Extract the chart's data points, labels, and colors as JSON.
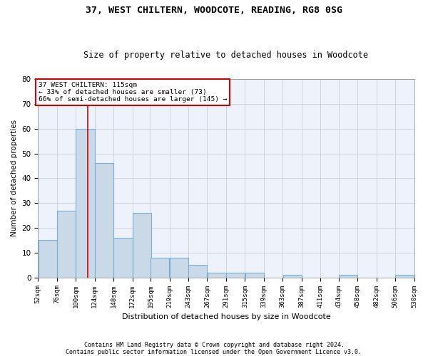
{
  "title1": "37, WEST CHILTERN, WOODCOTE, READING, RG8 0SG",
  "title2": "Size of property relative to detached houses in Woodcote",
  "xlabel": "Distribution of detached houses by size in Woodcote",
  "ylabel": "Number of detached properties",
  "bar_values": [
    15,
    27,
    60,
    46,
    16,
    26,
    8,
    8,
    5,
    2,
    2,
    2,
    0,
    1,
    0,
    0,
    1,
    0,
    0,
    1
  ],
  "bin_edges": [
    52,
    76,
    100,
    124,
    148,
    172,
    195,
    219,
    243,
    267,
    291,
    315,
    339,
    363,
    387,
    411,
    434,
    458,
    482,
    506,
    530
  ],
  "tick_labels": [
    "52sqm",
    "76sqm",
    "100sqm",
    "124sqm",
    "148sqm",
    "172sqm",
    "195sqm",
    "219sqm",
    "243sqm",
    "267sqm",
    "291sqm",
    "315sqm",
    "339sqm",
    "363sqm",
    "387sqm",
    "411sqm",
    "434sqm",
    "458sqm",
    "482sqm",
    "506sqm",
    "530sqm"
  ],
  "bar_color": "#c9d9e8",
  "bar_edgecolor": "#7aafd4",
  "bar_linewidth": 0.8,
  "grid_color": "#c8cfe0",
  "background_color": "#eef2fa",
  "ylim": [
    0,
    80
  ],
  "yticks": [
    0,
    10,
    20,
    30,
    40,
    50,
    60,
    70,
    80
  ],
  "property_line_x": 115,
  "property_line_color": "#cc0000",
  "annotation_title": "37 WEST CHILTERN: 115sqm",
  "annotation_line1": "← 33% of detached houses are smaller (73)",
  "annotation_line2": "66% of semi-detached houses are larger (145) →",
  "footer1": "Contains HM Land Registry data © Crown copyright and database right 2024.",
  "footer2": "Contains public sector information licensed under the Open Government Licence v3.0."
}
